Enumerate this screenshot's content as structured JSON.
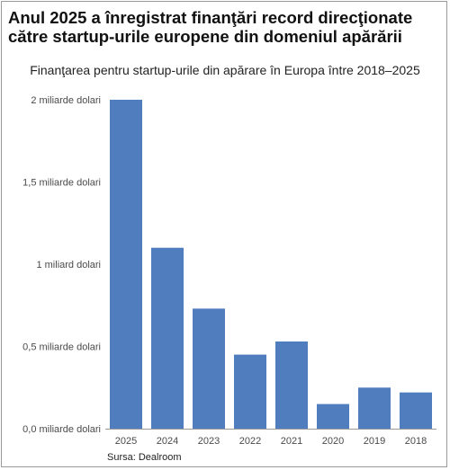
{
  "title": "Anul 2025 a înregistrat finanţări record direcţionate către startup-urile europene din domeniul apărării",
  "subtitle": "Finanţarea pentru startup-urile din apărare în Europa între 2018–2025",
  "source": "Sursa: Dealroom",
  "chart_data": {
    "type": "bar",
    "title": "Anul 2025 a înregistrat finanţări record direcţionate către startup-urile europene din domeniul apărării",
    "subtitle": "Finanţarea pentru startup-urile din apărare în Europa între 2018–2025",
    "categories": [
      "2025",
      "2024",
      "2023",
      "2022",
      "2021",
      "2020",
      "2019",
      "2018"
    ],
    "values": [
      2.0,
      1.1,
      0.73,
      0.45,
      0.53,
      0.15,
      0.25,
      0.22
    ],
    "unit": "miliarde dolari",
    "ylim": [
      0,
      2
    ],
    "yticks": [
      {
        "value": 0,
        "label": "0,0 miliarde dolari"
      },
      {
        "value": 0.5,
        "label": "0,5 miliarde dolari"
      },
      {
        "value": 1,
        "label": "1 miliard dolari"
      },
      {
        "value": 1.5,
        "label": "1,5 miliarde dolari"
      },
      {
        "value": 2,
        "label": "2 miliarde dolari"
      }
    ],
    "xlabel": "",
    "ylabel": "",
    "grid": false,
    "legend": "none",
    "bar_color": "#4f7dbd",
    "axis_color": "#9a9a9a",
    "tick_text_color": "#4a4a4a"
  }
}
